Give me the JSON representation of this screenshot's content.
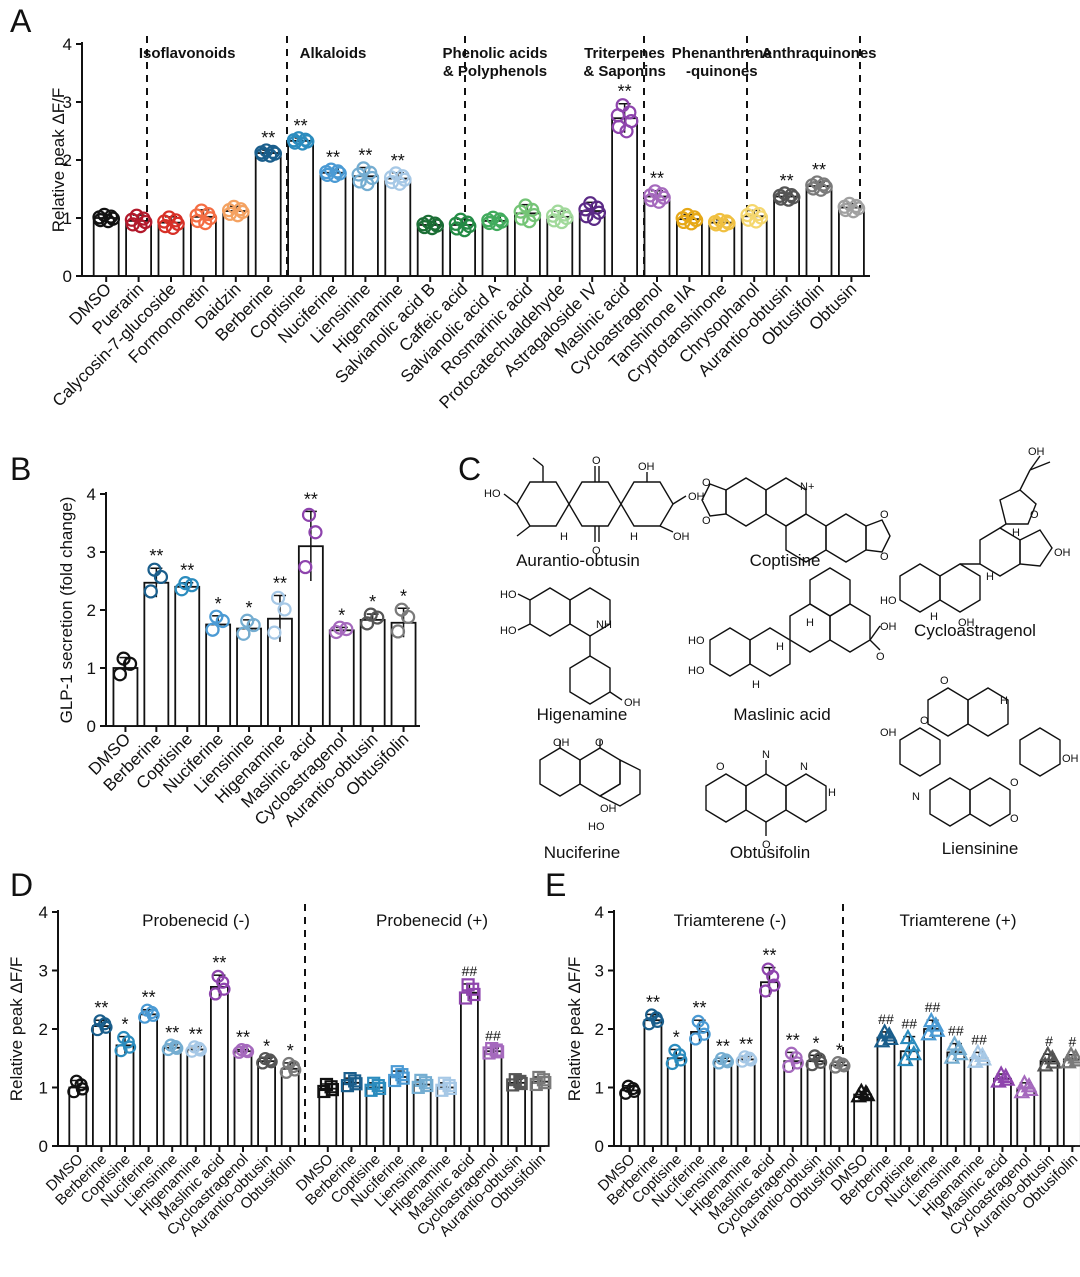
{
  "colors": {
    "DMSO": "#111111",
    "Puerarin": "#b2182b",
    "Calycosin-7-glucoside": "#d73027",
    "Formononetin": "#f46d43",
    "Daidzin": "#f4a261",
    "Berberine": "#1a5e8c",
    "Coptisine": "#2b8cbe",
    "Nuciferine": "#4a9ad4",
    "Liensinine": "#74add1",
    "Higenamine": "#a6c8e6",
    "Salvianolic acid B": "#1b6e35",
    "Caffeic acid": "#238b45",
    "Salvianolic acid A": "#41ab5d",
    "Rosmarinic acid": "#74c476",
    "Protocatechualdehyde": "#a1d99b",
    "Astragaloside IV": "#5b2a86",
    "Maslinic acid": "#8e44ad",
    "Cycloastragenol": "#a569bd",
    "Tanshinone IIA": "#e6a817",
    "Cryptotanshinone": "#f0c040",
    "Chrysophanol": "#f5d76e",
    "Aurantio-obtusin": "#555555",
    "Obtusifolin": "#7a7a7a",
    "Obtusin": "#a0a0a0"
  },
  "panels": {
    "A": "A",
    "B": "B",
    "C": "C",
    "D": "D",
    "E": "E"
  },
  "chart_data": [
    {
      "id": "A",
      "type": "bar",
      "ylabel": "Relative peak ΔF/F",
      "ylim": [
        0,
        4
      ],
      "yticks": [
        0,
        1,
        2,
        3,
        4
      ],
      "categories": [
        "DMSO",
        "Puerarin",
        "Calycosin-7-glucoside",
        "Formononetin",
        "Daidzin",
        "Berberine",
        "Coptisine",
        "Nuciferine",
        "Liensinine",
        "Higenamine",
        "Salvianolic acid B",
        "Caffeic acid",
        "Salvianolic acid A",
        "Rosmarinic acid",
        "Protocatechualdehyde",
        "Astragaloside IV",
        "Maslinic acid",
        "Cycloastragenol",
        "Tanshinone IIA",
        "Cryptotanshinone",
        "Chrysophanol",
        "Aurantio-obtusin",
        "Obtusifolin",
        "Obtusin"
      ],
      "values": [
        1.0,
        0.95,
        0.92,
        1.02,
        1.12,
        2.12,
        2.33,
        1.78,
        1.72,
        1.68,
        0.88,
        0.88,
        0.95,
        1.08,
        1.02,
        1.12,
        2.72,
        1.37,
        0.98,
        0.92,
        1.03,
        1.37,
        1.55,
        1.18
      ],
      "errors": [
        0.06,
        0.1,
        0.1,
        0.12,
        0.08,
        0.05,
        0.05,
        0.06,
        0.15,
        0.1,
        0.06,
        0.1,
        0.06,
        0.15,
        0.1,
        0.15,
        0.25,
        0.1,
        0.08,
        0.05,
        0.1,
        0.06,
        0.07,
        0.07
      ],
      "sig": [
        "",
        "",
        "",
        "",
        "",
        "**",
        "**",
        "**",
        "**",
        "**",
        "",
        "",
        "",
        "",
        "",
        "",
        "**",
        "**",
        "",
        "",
        "",
        "**",
        "**",
        ""
      ],
      "groups": [
        {
          "label": [
            "Isoflavonoids"
          ],
          "from": 1,
          "to": 4
        },
        {
          "label": [
            "Alkaloids"
          ],
          "from": 5,
          "to": 9
        },
        {
          "label": [
            "Phenolic acids",
            "& Polyphenols"
          ],
          "from": 10,
          "to": 14
        },
        {
          "label": [
            "Triterpenes",
            "& Saponins"
          ],
          "from": 15,
          "to": 17
        },
        {
          "label": [
            "Phenanthrene",
            "-quinones"
          ],
          "from": 18,
          "to": 20
        },
        {
          "label": [
            "Anthraquinones"
          ],
          "from": 21,
          "to": 23
        }
      ]
    },
    {
      "id": "B",
      "type": "bar",
      "ylabel": "GLP-1 secretion (fold change)",
      "ylim": [
        0,
        4
      ],
      "yticks": [
        0,
        1,
        2,
        3,
        4
      ],
      "categories": [
        "DMSO",
        "Berberine",
        "Coptisine",
        "Nuciferine",
        "Liensinine",
        "Higenamine",
        "Maslinic acid",
        "Cycloastragenol",
        "Aurantio-obtusin",
        "Obtusifolin"
      ],
      "values": [
        1.0,
        2.47,
        2.4,
        1.75,
        1.68,
        1.85,
        3.1,
        1.65,
        1.83,
        1.78
      ],
      "errors": [
        0.18,
        0.25,
        0.07,
        0.15,
        0.15,
        0.4,
        0.6,
        0.05,
        0.1,
        0.25
      ],
      "sig": [
        "",
        "**",
        "**",
        "*",
        "*",
        "**",
        "**",
        "*",
        "*",
        "*"
      ]
    },
    {
      "id": "D",
      "type": "bar",
      "ylabel": "Relative peak ΔF/F",
      "ylim": [
        0,
        4
      ],
      "yticks": [
        0,
        1,
        2,
        3,
        4
      ],
      "groups": [
        {
          "label": [
            "Probenecid (-)"
          ]
        },
        {
          "label": [
            "Probenecid (+)"
          ]
        }
      ],
      "categories": [
        "DMSO",
        "Berberine",
        "Coptisine",
        "Nuciferine",
        "Liensinine",
        "Higenamine",
        "Maslinic acid",
        "Cycloastragenol",
        "Aurantio-obtusin",
        "Obtusifolin",
        "DMSO",
        "Berberine",
        "Coptisine",
        "Nuciferine",
        "Liensinine",
        "Higenamine",
        "Maslinic acid",
        "Cycloastragenol",
        "Aurantio-obtusin",
        "Obtusifolin"
      ],
      "values": [
        1.0,
        2.05,
        1.72,
        2.25,
        1.68,
        1.65,
        2.72,
        1.62,
        1.45,
        1.32,
        0.98,
        1.08,
        1.0,
        1.18,
        1.05,
        1.0,
        2.62,
        1.62,
        1.08,
        1.1
      ],
      "errors": [
        0.12,
        0.1,
        0.15,
        0.08,
        0.05,
        0.05,
        0.2,
        0.03,
        0.05,
        0.1,
        0.08,
        0.08,
        0.08,
        0.1,
        0.08,
        0.08,
        0.15,
        0.05,
        0.06,
        0.08
      ],
      "sig": [
        "",
        "**",
        "*",
        "**",
        "**",
        "**",
        "**",
        "**",
        "*",
        "*",
        "",
        "",
        "",
        "",
        "",
        "",
        "##",
        "##",
        "",
        ""
      ]
    },
    {
      "id": "E",
      "type": "bar",
      "ylabel": "Relative peak ΔF/F",
      "ylim": [
        0,
        4
      ],
      "yticks": [
        0,
        1,
        2,
        3,
        4
      ],
      "groups": [
        {
          "label": [
            "Triamterene (-)"
          ]
        },
        {
          "label": [
            "Triamterene (+)"
          ]
        }
      ],
      "categories": [
        "DMSO",
        "Berberine",
        "Coptisine",
        "Nuciferine",
        "Liensinine",
        "Higenamine",
        "Maslinic acid",
        "Cycloastragenol",
        "Aurantio-obtusin",
        "Obtusifolin",
        "DMSO",
        "Berberine",
        "Coptisine",
        "Nuciferine",
        "Liensinine",
        "Higenamine",
        "Maslinic acid",
        "Cycloastragenol",
        "Aurantio-obtusin",
        "Obtusifolin"
      ],
      "values": [
        0.95,
        2.15,
        1.5,
        1.95,
        1.45,
        1.48,
        2.8,
        1.45,
        1.45,
        1.38,
        0.88,
        1.85,
        1.62,
        2.0,
        1.6,
        1.5,
        1.15,
        0.98,
        1.45,
        1.48
      ],
      "errors": [
        0.08,
        0.1,
        0.15,
        0.2,
        0.05,
        0.05,
        0.25,
        0.15,
        0.1,
        0.05,
        0.05,
        0.1,
        0.25,
        0.15,
        0.15,
        0.1,
        0.08,
        0.1,
        0.12,
        0.08
      ],
      "sig": [
        "",
        "**",
        "*",
        "**",
        "**",
        "**",
        "**",
        "**",
        "*",
        "*",
        "",
        "##",
        "##",
        "##",
        "##",
        "##",
        "",
        "",
        "#",
        "#"
      ]
    }
  ],
  "structures": {
    "labels": [
      "Aurantio-obtusin",
      "Coptisine",
      "Cycloastragenol",
      "Higenamine",
      "Maslinic acid",
      "Nuciferine",
      "Obtusifolin",
      "Liensinine"
    ],
    "atoms": [
      "HO",
      "OH",
      "OH",
      "O",
      "O",
      "OH",
      "H",
      "H",
      "N+",
      "O",
      "O",
      "O",
      "O",
      "OH",
      "O",
      "H",
      "OH",
      "HO",
      "H",
      "H",
      "OH",
      "HO",
      "NH",
      "HO",
      "OH",
      "HO",
      "H",
      "OH",
      "HO",
      "H",
      "H",
      "O",
      "OH",
      "O",
      "OH",
      "HO",
      "O",
      "N",
      "H",
      "N",
      "O",
      "O",
      "O",
      "OH",
      "OH",
      "O",
      "O",
      "N",
      "H",
      "O",
      "O",
      "O"
    ]
  }
}
